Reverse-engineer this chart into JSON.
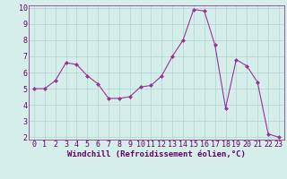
{
  "x": [
    0,
    1,
    2,
    3,
    4,
    5,
    6,
    7,
    8,
    9,
    10,
    11,
    12,
    13,
    14,
    15,
    16,
    17,
    18,
    19,
    20,
    21,
    22,
    23
  ],
  "y": [
    5.0,
    5.0,
    5.5,
    6.6,
    6.5,
    5.8,
    5.3,
    4.4,
    4.4,
    4.5,
    5.1,
    5.2,
    5.8,
    7.0,
    8.0,
    9.9,
    9.8,
    7.7,
    3.8,
    6.8,
    6.4,
    5.4,
    2.2,
    2.0
  ],
  "line_color": "#993399",
  "marker": "D",
  "marker_size": 2.0,
  "bg_color": "#d6eeea",
  "grid_color": "#b0d4ce",
  "xlabel": "Windchill (Refroidissement éolien,°C)",
  "ylim": [
    2,
    10
  ],
  "xlim": [
    -0.5,
    23.5
  ],
  "yticks": [
    2,
    3,
    4,
    5,
    6,
    7,
    8,
    9,
    10
  ],
  "xticks": [
    0,
    1,
    2,
    3,
    4,
    5,
    6,
    7,
    8,
    9,
    10,
    11,
    12,
    13,
    14,
    15,
    16,
    17,
    18,
    19,
    20,
    21,
    22,
    23
  ],
  "tick_color": "#660066",
  "label_fontsize": 6.5,
  "tick_fontsize": 6.0,
  "spine_color": "#884488"
}
